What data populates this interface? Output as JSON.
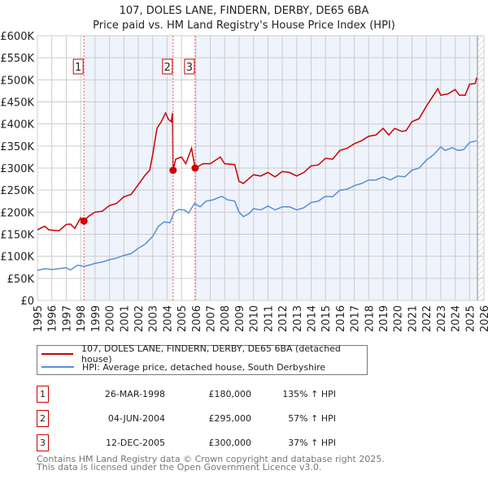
{
  "chart_data": {
    "type": "line",
    "title": "107, DOLES LANE, FINDERN, DERBY, DE65 6BA",
    "subtitle": "Price paid vs. HM Land Registry's House Price Index (HPI)",
    "xlim": [
      1995,
      2026
    ],
    "ylim": [
      0,
      600000
    ],
    "y_ticks": [
      {
        "v": 0,
        "label": "£0"
      },
      {
        "v": 50,
        "label": "£50K"
      },
      {
        "v": 100,
        "label": "£100K"
      },
      {
        "v": 150,
        "label": "£150K"
      },
      {
        "v": 200,
        "label": "£200K"
      },
      {
        "v": 250,
        "label": "£250K"
      },
      {
        "v": 300,
        "label": "£300K"
      },
      {
        "v": 350,
        "label": "£350K"
      },
      {
        "v": 400,
        "label": "£400K"
      },
      {
        "v": 450,
        "label": "£450K"
      },
      {
        "v": 500,
        "label": "£500K"
      },
      {
        "v": 550,
        "label": "£550K"
      },
      {
        "v": 600,
        "label": "£600K"
      }
    ],
    "x_ticks": [
      "1995",
      "1996",
      "1997",
      "1998",
      "1999",
      "2000",
      "2001",
      "2002",
      "2003",
      "2004",
      "2005",
      "2006",
      "2007",
      "2008",
      "2009",
      "2010",
      "2011",
      "2012",
      "2013",
      "2014",
      "2015",
      "2016",
      "2017",
      "2018",
      "2019",
      "2020",
      "2021",
      "2022",
      "2023",
      "2024",
      "2025",
      "2026"
    ],
    "grid": true,
    "series": [
      {
        "name": "107, DOLES LANE, FINDERN, DERBY, DE65 6BA (detached house)",
        "color": "#cc0000",
        "unit": "£K",
        "points": [
          [
            1995,
            160
          ],
          [
            1995.5,
            168
          ],
          [
            1995.8,
            160
          ],
          [
            1996.5,
            158
          ],
          [
            1997,
            172
          ],
          [
            1997.3,
            173
          ],
          [
            1997.6,
            163
          ],
          [
            1998,
            187
          ],
          [
            1998.2,
            180
          ],
          [
            1998.6,
            192
          ],
          [
            1999,
            200
          ],
          [
            1999.5,
            202
          ],
          [
            2000,
            215
          ],
          [
            2000.5,
            220
          ],
          [
            2001,
            235
          ],
          [
            2001.5,
            240
          ],
          [
            2002,
            262
          ],
          [
            2002.5,
            285
          ],
          [
            2002.8,
            295
          ],
          [
            2003,
            330
          ],
          [
            2003.3,
            390
          ],
          [
            2003.6,
            405
          ],
          [
            2003.9,
            425
          ],
          [
            2004.1,
            410
          ],
          [
            2004.3,
            405
          ],
          [
            2004.38,
            425
          ],
          [
            2004.42,
            295
          ],
          [
            2004.6,
            320
          ],
          [
            2005,
            325
          ],
          [
            2005.3,
            310
          ],
          [
            2005.7,
            345
          ],
          [
            2005.95,
            300
          ],
          [
            2006.5,
            310
          ],
          [
            2007,
            310
          ],
          [
            2007.7,
            325
          ],
          [
            2008,
            310
          ],
          [
            2008.7,
            308
          ],
          [
            2009,
            270
          ],
          [
            2009.3,
            265
          ],
          [
            2010,
            285
          ],
          [
            2010.5,
            282
          ],
          [
            2011,
            290
          ],
          [
            2011.5,
            280
          ],
          [
            2012,
            292
          ],
          [
            2012.5,
            290
          ],
          [
            2013,
            282
          ],
          [
            2013.5,
            290
          ],
          [
            2014,
            305
          ],
          [
            2014.5,
            307
          ],
          [
            2015,
            322
          ],
          [
            2015.5,
            320
          ],
          [
            2016,
            340
          ],
          [
            2016.5,
            345
          ],
          [
            2017,
            355
          ],
          [
            2017.5,
            362
          ],
          [
            2018,
            372
          ],
          [
            2018.5,
            375
          ],
          [
            2019,
            390
          ],
          [
            2019.4,
            375
          ],
          [
            2019.8,
            390
          ],
          [
            2020.3,
            383
          ],
          [
            2020.6,
            385
          ],
          [
            2021,
            405
          ],
          [
            2021.5,
            412
          ],
          [
            2022,
            440
          ],
          [
            2022.5,
            465
          ],
          [
            2022.8,
            480
          ],
          [
            2023,
            465
          ],
          [
            2023.5,
            468
          ],
          [
            2024,
            478
          ],
          [
            2024.3,
            465
          ],
          [
            2024.7,
            465
          ],
          [
            2025,
            490
          ],
          [
            2025.4,
            492
          ],
          [
            2025.5,
            505
          ]
        ]
      },
      {
        "name": "HPI: Average price, detached house, South Derbyshire",
        "color": "#5b8fd4",
        "unit": "£K",
        "points": [
          [
            1995,
            68
          ],
          [
            1995.5,
            72
          ],
          [
            1996,
            70
          ],
          [
            1996.5,
            72
          ],
          [
            1997,
            74
          ],
          [
            1997.3,
            69
          ],
          [
            1997.8,
            80
          ],
          [
            1998.2,
            77
          ],
          [
            1998.6,
            80
          ],
          [
            1999,
            84
          ],
          [
            1999.5,
            87
          ],
          [
            2000,
            92
          ],
          [
            2000.5,
            96
          ],
          [
            2001,
            102
          ],
          [
            2001.5,
            106
          ],
          [
            2002,
            118
          ],
          [
            2002.5,
            128
          ],
          [
            2003,
            145
          ],
          [
            2003.4,
            168
          ],
          [
            2003.8,
            178
          ],
          [
            2004.2,
            176
          ],
          [
            2004.5,
            200
          ],
          [
            2004.8,
            206
          ],
          [
            2005.2,
            205
          ],
          [
            2005.5,
            198
          ],
          [
            2005.9,
            220
          ],
          [
            2006.3,
            212
          ],
          [
            2006.7,
            225
          ],
          [
            2007.2,
            228
          ],
          [
            2007.8,
            236
          ],
          [
            2008.2,
            228
          ],
          [
            2008.7,
            225
          ],
          [
            2009,
            200
          ],
          [
            2009.3,
            190
          ],
          [
            2009.7,
            197
          ],
          [
            2010,
            208
          ],
          [
            2010.5,
            205
          ],
          [
            2011,
            214
          ],
          [
            2011.5,
            205
          ],
          [
            2012,
            212
          ],
          [
            2012.5,
            212
          ],
          [
            2013,
            205
          ],
          [
            2013.5,
            210
          ],
          [
            2014,
            222
          ],
          [
            2014.5,
            225
          ],
          [
            2015,
            236
          ],
          [
            2015.5,
            235
          ],
          [
            2016,
            250
          ],
          [
            2016.5,
            252
          ],
          [
            2017,
            260
          ],
          [
            2017.5,
            265
          ],
          [
            2018,
            273
          ],
          [
            2018.5,
            273
          ],
          [
            2019,
            280
          ],
          [
            2019.5,
            273
          ],
          [
            2020,
            282
          ],
          [
            2020.5,
            280
          ],
          [
            2021,
            295
          ],
          [
            2021.5,
            300
          ],
          [
            2022,
            318
          ],
          [
            2022.5,
            330
          ],
          [
            2023,
            348
          ],
          [
            2023.3,
            340
          ],
          [
            2023.8,
            346
          ],
          [
            2024.2,
            340
          ],
          [
            2024.6,
            342
          ],
          [
            2025,
            358
          ],
          [
            2025.5,
            362
          ]
        ]
      }
    ],
    "sales": [
      {
        "label": "1",
        "year": 1998.23,
        "price": 180
      },
      {
        "label": "2",
        "year": 2004.42,
        "price": 295
      },
      {
        "label": "3",
        "year": 2005.95,
        "price": 300
      }
    ],
    "forecast_start": 2025.55
  },
  "legend": {
    "property": "107, DOLES LANE, FINDERN, DERBY, DE65 6BA (detached house)",
    "hpi": "HPI: Average price, detached house, South Derbyshire"
  },
  "transactions": [
    {
      "num": "1",
      "date": "26-MAR-1998",
      "price": "£180,000",
      "hpi": "135% ↑ HPI"
    },
    {
      "num": "2",
      "date": "04-JUN-2004",
      "price": "£295,000",
      "hpi": "57% ↑ HPI"
    },
    {
      "num": "3",
      "date": "12-DEC-2005",
      "price": "£300,000",
      "hpi": "37% ↑ HPI"
    }
  ],
  "footer": {
    "line1": "Contains HM Land Registry data © Crown copyright and database right 2025.",
    "line2": "This data is licensed under the Open Government Licence v3.0."
  }
}
